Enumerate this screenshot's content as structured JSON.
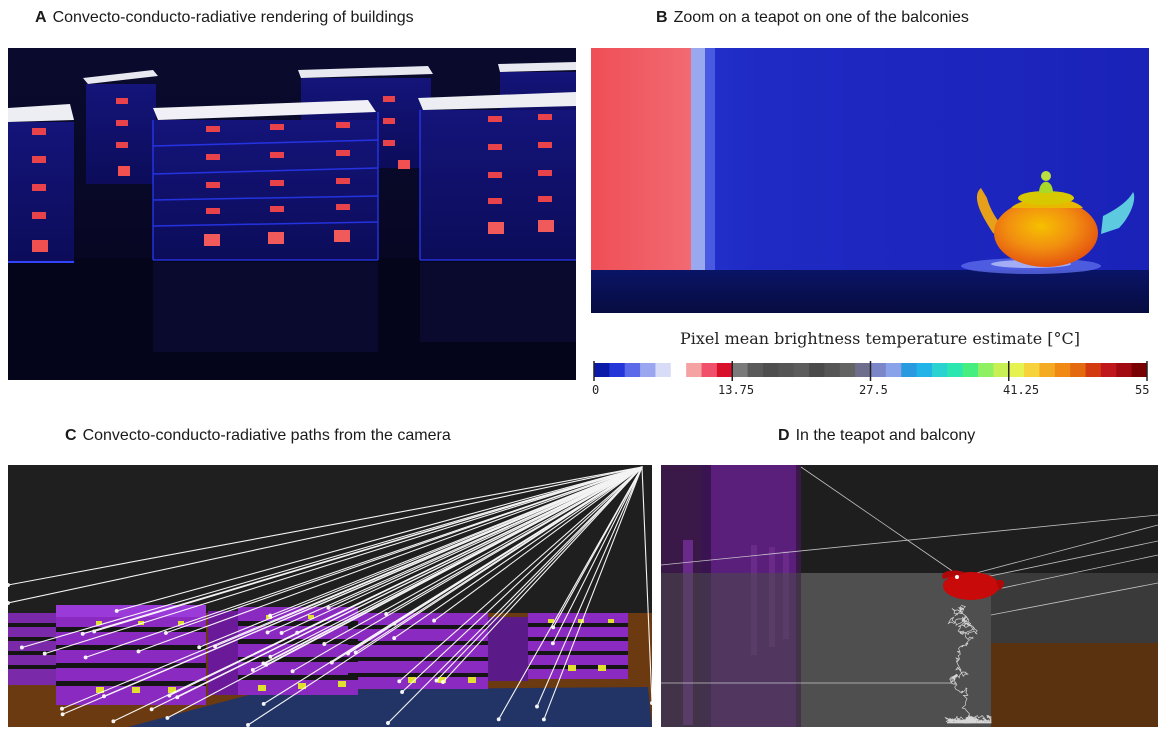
{
  "panels": {
    "a": {
      "letter": "A",
      "title": "Convecto-conducto-radiative rendering of buildings"
    },
    "b": {
      "letter": "B",
      "title": "Zoom on a teapot on one of the balconies"
    },
    "c": {
      "letter": "C",
      "title": "Convecto-conducto-radiative paths from the camera"
    },
    "d": {
      "letter": "D",
      "title": "In the teapot and balcony"
    }
  },
  "colorbar": {
    "title": "Pixel mean brightness temperature estimate [°C]",
    "ticks": [
      "0",
      "13.75",
      "27.5",
      "41.25",
      "55"
    ],
    "swatches": [
      "#0b1aa8",
      "#2436d8",
      "#5a6ae8",
      "#9aa6f0",
      "#d8dcf6",
      "#ffffff",
      "#f4a2a2",
      "#f0506a",
      "#d8102a",
      "#7a7a7a",
      "#5a5a5a",
      "#4e4e4e",
      "#555555",
      "#5c5c5c",
      "#4a4a4a",
      "#555555",
      "#636363",
      "#6e6e8c",
      "#7b86c8",
      "#8aa2ea",
      "#2a9ae0",
      "#22b4e8",
      "#2ad2d0",
      "#2ce6b0",
      "#46ee80",
      "#8ef062",
      "#c8f054",
      "#e6f250",
      "#f6d23c",
      "#f4aa22",
      "#f08a14",
      "#e46a10",
      "#d43a10",
      "#c0181a",
      "#a00a10",
      "#780000"
    ]
  }
}
